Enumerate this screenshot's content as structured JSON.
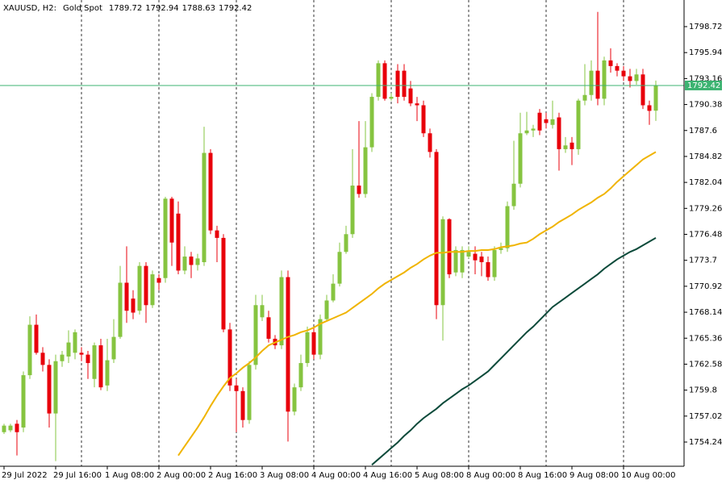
{
  "chart_data": {
    "type": "candlestick",
    "symbol": "XAUUSD, H2:",
    "description": "Gold Spot",
    "categories": [
      "29 Jul 2022",
      null,
      null,
      null,
      null,
      null,
      null,
      null,
      "29 Jul 16:00",
      null,
      null,
      null,
      null,
      null,
      null,
      null,
      "1 Aug 08:00",
      null,
      null,
      null,
      null,
      null,
      null,
      null,
      "2 Aug 00:00",
      null,
      null,
      null,
      null,
      null,
      null,
      null,
      "2 Aug 16:00",
      null,
      null,
      null,
      null,
      null,
      null,
      null,
      "3 Aug 08:00",
      null,
      null,
      null,
      null,
      null,
      null,
      null,
      "4 Aug 00:00",
      null,
      null,
      null,
      null,
      null,
      null,
      null,
      "4 Aug 16:00",
      null,
      null,
      null,
      null,
      null,
      null,
      null,
      "5 Aug 08:00",
      null,
      null,
      null,
      null,
      null,
      null,
      null,
      "8 Aug 00:00",
      null,
      null,
      null,
      null,
      null,
      null,
      null,
      "8 Aug 16:00",
      null,
      null,
      null,
      null,
      null,
      null,
      null,
      "9 Aug 08:00",
      null,
      null,
      null,
      null,
      null,
      null,
      null,
      "10 Aug 00:00",
      null,
      null,
      null,
      null,
      null
    ],
    "open": [
      1755.3,
      1755.5,
      1756.2,
      1755.8,
      1761.4,
      1766.8,
      1763.8,
      1762.5,
      1757.3,
      1762.9,
      1763.4,
      1763.8,
      1763.8,
      1763.6,
      1761.0,
      1764.6,
      1760.3,
      1763.1,
      1765.5,
      1771.3,
      1769.6,
      1768.3,
      1773.1,
      1768.9,
      1771.8,
      1771.8,
      1780.3,
      1778.7,
      1772.6,
      1774.1,
      1773.2,
      1773.5,
      1785.2,
      1776.9,
      1776.1,
      1766.3,
      1760.3,
      1759.7,
      1756.6,
      1762.5,
      1767.6,
      1767.6,
      1765.3,
      1764.6,
      1771.9,
      1757.5,
      1760.1,
      1762.7,
      1766.0,
      1763.6,
      1767.4,
      1769.4,
      1771.2,
      1774.6,
      1776.5,
      1781.7,
      1780.8,
      1785.8,
      1791.2,
      1794.8,
      1791.0,
      1794.0,
      1794.0,
      1792.1,
      1790.5,
      1790.3,
      1787.3,
      1785.3,
      1768.9,
      1778.1,
      1772.4,
      1772.4,
      1774.1,
      1774.4,
      1774.1,
      1773.5,
      1771.9,
      1774.8,
      1775.0,
      1779.5,
      1781.9,
      1787.3,
      1787.6,
      1789.5,
      1788.8,
      1788.2,
      1789.0,
      1785.6,
      1786.3,
      1785.6,
      1790.8,
      1791.4,
      1794.0,
      1791.0,
      1795.1,
      1794.5,
      1794.0,
      1793.4,
      1792.9,
      1793.6,
      1790.3,
      1789.72
    ],
    "high": [
      1756.2,
      1756.2,
      1756.6,
      1761.8,
      1767.7,
      1767.9,
      1764.4,
      1763.1,
      1763.6,
      1764.0,
      1766.2,
      1766.3,
      1764.4,
      1764.0,
      1764.9,
      1765.3,
      1765.3,
      1767.4,
      1773.1,
      1775.2,
      1770.5,
      1773.5,
      1773.5,
      1772.6,
      1772.2,
      1780.5,
      1780.5,
      1780.0,
      1775.2,
      1774.6,
      1774.4,
      1788.0,
      1785.6,
      1777.4,
      1776.5,
      1767.0,
      1761.0,
      1760.1,
      1762.9,
      1770.0,
      1770.0,
      1768.3,
      1765.7,
      1772.6,
      1772.6,
      1760.5,
      1763.6,
      1766.6,
      1766.6,
      1767.9,
      1770.0,
      1772.2,
      1775.6,
      1777.4,
      1785.6,
      1788.6,
      1788.6,
      1791.6,
      1795.1,
      1795.1,
      1791.6,
      1794.7,
      1794.7,
      1792.9,
      1791.2,
      1790.8,
      1787.8,
      1785.6,
      1778.4,
      1778.2,
      1775.2,
      1775.2,
      1775.2,
      1775.2,
      1774.6,
      1774.1,
      1775.2,
      1775.6,
      1780.0,
      1786.5,
      1789.5,
      1789.6,
      1788.2,
      1789.9,
      1789.5,
      1790.8,
      1789.5,
      1786.9,
      1786.9,
      1791.0,
      1794.7,
      1795.1,
      1800.3,
      1795.5,
      1796.4,
      1794.8,
      1794.5,
      1794.2,
      1794.2,
      1794.2,
      1790.8,
      1792.94
    ],
    "low": [
      1755.1,
      1755.3,
      1752.8,
      1755.3,
      1761.0,
      1763.6,
      1761.8,
      1755.8,
      1752.2,
      1762.3,
      1762.7,
      1763.1,
      1762.9,
      1761.0,
      1760.1,
      1759.8,
      1759.7,
      1762.7,
      1765.3,
      1767.0,
      1767.4,
      1767.9,
      1767.0,
      1768.6,
      1770.5,
      1771.3,
      1773.1,
      1772.2,
      1772.2,
      1771.8,
      1772.6,
      1773.1,
      1776.5,
      1773.5,
      1766.0,
      1759.7,
      1755.3,
      1755.8,
      1756.2,
      1762.0,
      1767.2,
      1764.9,
      1764.2,
      1764.2,
      1754.3,
      1757.1,
      1759.7,
      1762.3,
      1763.1,
      1763.1,
      1767.2,
      1769.2,
      1770.9,
      1774.4,
      1776.1,
      1780.4,
      1780.4,
      1785.3,
      1790.8,
      1790.8,
      1790.8,
      1790.5,
      1790.8,
      1790.2,
      1788.6,
      1786.9,
      1784.7,
      1767.4,
      1765.1,
      1771.8,
      1772.0,
      1771.8,
      1773.9,
      1772.2,
      1772.0,
      1771.5,
      1771.5,
      1774.4,
      1774.6,
      1779.1,
      1781.5,
      1787.1,
      1786.9,
      1787.1,
      1787.8,
      1787.8,
      1783.3,
      1785.2,
      1783.9,
      1785.0,
      1790.3,
      1790.8,
      1790.3,
      1790.3,
      1793.8,
      1793.4,
      1792.9,
      1792.2,
      1792.5,
      1789.9,
      1788.2,
      1788.63
    ],
    "close": [
      1756.0,
      1756.0,
      1755.3,
      1761.4,
      1766.8,
      1763.8,
      1762.5,
      1757.3,
      1762.9,
      1763.6,
      1764.9,
      1766.0,
      1763.6,
      1762.7,
      1764.6,
      1760.1,
      1763.0,
      1765.5,
      1771.3,
      1768.3,
      1768.1,
      1773.1,
      1768.9,
      1772.2,
      1771.3,
      1780.3,
      1775.6,
      1772.6,
      1774.1,
      1773.2,
      1773.9,
      1785.2,
      1776.9,
      1776.1,
      1766.3,
      1760.3,
      1759.7,
      1756.6,
      1762.5,
      1768.9,
      1768.9,
      1765.3,
      1764.6,
      1771.9,
      1757.5,
      1760.1,
      1762.7,
      1766.0,
      1763.6,
      1767.4,
      1769.4,
      1771.2,
      1774.6,
      1776.5,
      1781.7,
      1780.8,
      1785.8,
      1791.2,
      1794.8,
      1791.0,
      1791.2,
      1791.2,
      1791.2,
      1790.5,
      1790.3,
      1787.3,
      1785.3,
      1768.9,
      1778.1,
      1772.2,
      1774.8,
      1774.8,
      1774.6,
      1773.7,
      1773.5,
      1771.9,
      1774.8,
      1775.0,
      1779.5,
      1781.9,
      1787.3,
      1787.6,
      1787.8,
      1787.6,
      1788.4,
      1788.8,
      1785.6,
      1786.0,
      1785.6,
      1790.8,
      1791.4,
      1794.0,
      1791.0,
      1795.1,
      1794.5,
      1794.0,
      1793.4,
      1792.9,
      1793.6,
      1790.3,
      1789.7,
      1792.42
    ],
    "series": [
      {
        "color": "#f0b400",
        "values": [
          null,
          null,
          null,
          null,
          null,
          null,
          null,
          null,
          null,
          null,
          null,
          null,
          null,
          null,
          null,
          null,
          null,
          null,
          null,
          null,
          null,
          null,
          null,
          null,
          null,
          null,
          null,
          1752.8,
          1753.8,
          1754.8,
          1755.8,
          1756.9,
          1758.1,
          1759.2,
          1760.2,
          1761.1,
          1761.6,
          1762.2,
          1762.7,
          1763.3,
          1764.0,
          1764.6,
          1764.9,
          1765.2,
          1765.5,
          1765.7,
          1766.0,
          1766.2,
          1766.5,
          1766.9,
          1767.2,
          1767.5,
          1767.8,
          1768.1,
          1768.6,
          1769.1,
          1769.6,
          1770.1,
          1770.7,
          1771.2,
          1771.6,
          1772.0,
          1772.4,
          1772.9,
          1773.3,
          1773.8,
          1774.2,
          1774.5,
          1774.5,
          1774.6,
          1774.6,
          1774.6,
          1774.7,
          1774.7,
          1774.8,
          1774.8,
          1774.9,
          1775.1,
          1775.2,
          1775.3,
          1775.5,
          1775.6,
          1776.0,
          1776.5,
          1776.9,
          1777.3,
          1777.8,
          1778.2,
          1778.6,
          1779.1,
          1779.5,
          1779.9,
          1780.4,
          1780.8,
          1781.4,
          1782.1,
          1782.7,
          1783.3,
          1783.9,
          1784.5,
          1784.9,
          1785.3
        ]
      },
      {
        "color": "#0b4a3a",
        "values": [
          null,
          null,
          null,
          null,
          null,
          null,
          null,
          null,
          null,
          null,
          null,
          null,
          null,
          null,
          null,
          null,
          null,
          null,
          null,
          null,
          null,
          null,
          null,
          null,
          null,
          null,
          null,
          null,
          null,
          null,
          null,
          null,
          null,
          null,
          null,
          null,
          null,
          null,
          null,
          null,
          null,
          null,
          null,
          null,
          null,
          null,
          null,
          null,
          null,
          null,
          null,
          null,
          null,
          null,
          null,
          null,
          null,
          1751.8,
          1752.4,
          1753.0,
          1753.6,
          1754.2,
          1754.9,
          1755.5,
          1756.2,
          1756.8,
          1757.3,
          1757.8,
          1758.4,
          1758.9,
          1759.4,
          1759.9,
          1760.3,
          1760.8,
          1761.3,
          1761.8,
          1762.5,
          1763.2,
          1763.9,
          1764.6,
          1765.3,
          1766.0,
          1766.6,
          1767.3,
          1768.0,
          1768.7,
          1769.2,
          1769.7,
          1770.2,
          1770.7,
          1771.2,
          1771.7,
          1772.2,
          1772.8,
          1773.3,
          1773.8,
          1774.2,
          1774.6,
          1774.9,
          1775.3,
          1775.7,
          1776.1
        ]
      }
    ],
    "ylim": [
      1751.65,
      1801.57
    ],
    "yticks": [
      1754.24,
      1757.02,
      1759.8,
      1762.58,
      1765.36,
      1768.14,
      1770.92,
      1773.7,
      1776.48,
      1779.26,
      1782.04,
      1784.82,
      1787.6,
      1790.38,
      1793.16,
      1795.94,
      1798.72
    ],
    "yticks_labels": null,
    "up_color": "#86c440",
    "down_color": "#e8000b",
    "price_line_color": "#3cb371",
    "period_separators": true
  }
}
